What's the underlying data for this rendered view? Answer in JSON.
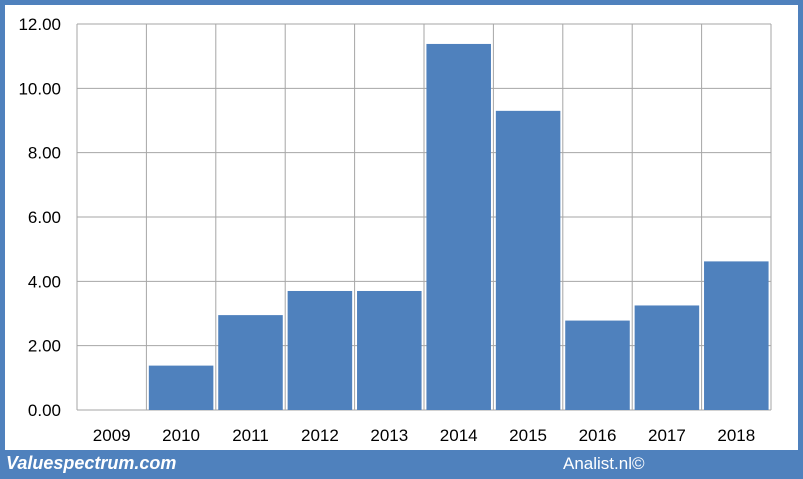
{
  "chart_data": {
    "type": "bar",
    "title": "",
    "xlabel": "",
    "ylabel": "",
    "categories": [
      "2009",
      "2010",
      "2011",
      "2012",
      "2013",
      "2014",
      "2015",
      "2016",
      "2017",
      "2018"
    ],
    "values": [
      0,
      1.38,
      2.95,
      3.7,
      3.7,
      11.38,
      9.3,
      2.78,
      3.25,
      4.62
    ],
    "ylim": [
      0,
      12
    ],
    "yticks": [
      "0.00",
      "2.00",
      "4.00",
      "6.00",
      "8.00",
      "10.00",
      "12.00"
    ],
    "grid": true,
    "legend": "none"
  },
  "colors": {
    "bar": "#4f81bd",
    "frame": "#4f81bd",
    "grid": "#a6a6a6"
  },
  "footer": {
    "left": "Valuespectrum.com",
    "right": "Analist.nl©"
  }
}
